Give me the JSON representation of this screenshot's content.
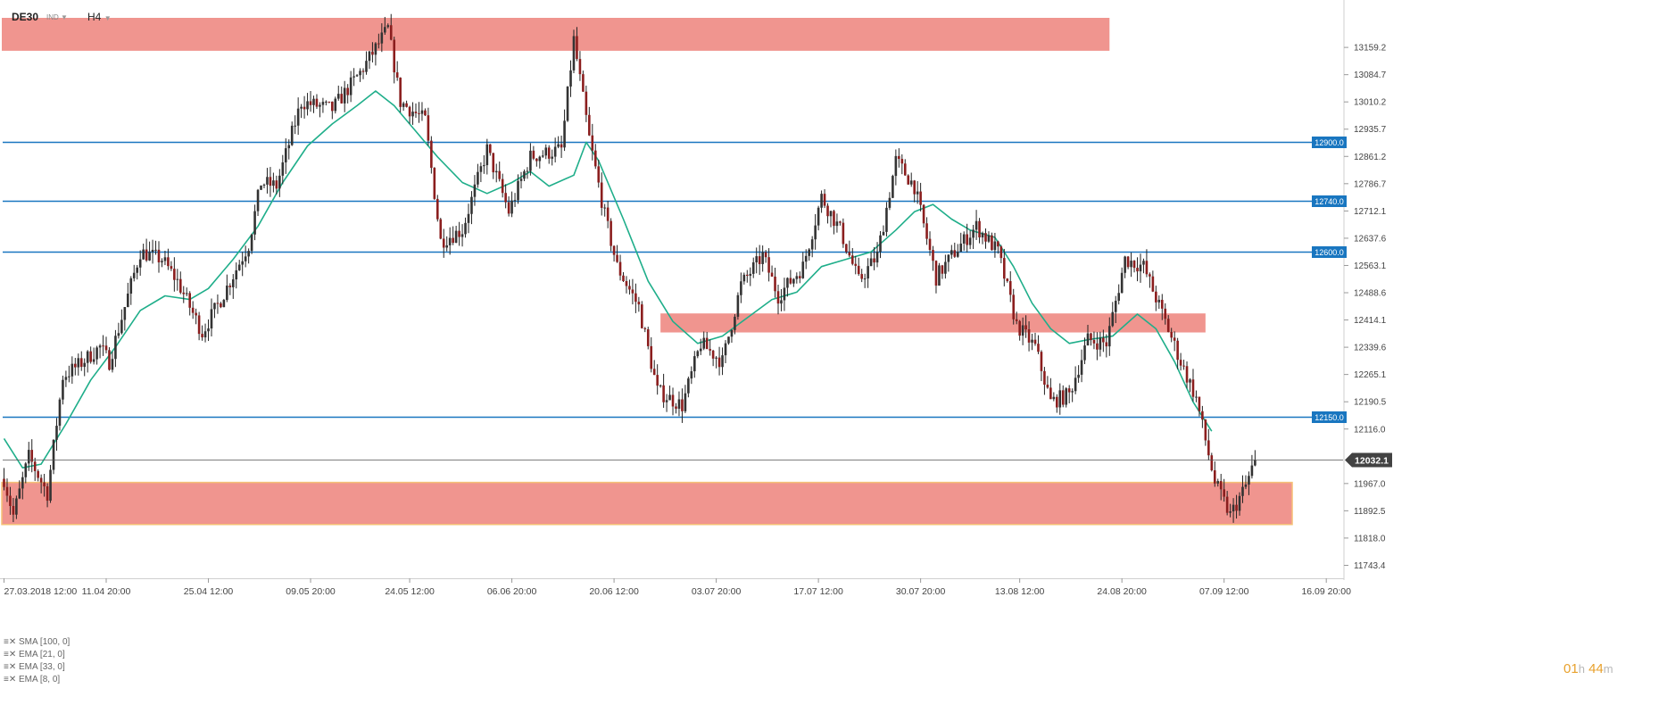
{
  "header": {
    "symbol": "DE30",
    "asset_class": "IND",
    "timeframe": "H4"
  },
  "indicators": [
    {
      "label": "SMA",
      "params": "[100,  0]"
    },
    {
      "label": "EMA",
      "params": "[21,  0]"
    },
    {
      "label": "EMA",
      "params": "[33,  0]"
    },
    {
      "label": "EMA",
      "params": "[8,  0]"
    }
  ],
  "countdown": {
    "hours": "01",
    "h_unit": "h",
    "minutes": "44",
    "m_unit": "m"
  },
  "colors": {
    "bull": "#333333",
    "bear": "#8b1e1e",
    "zone": "#f0958f",
    "level_line": "#1976c0",
    "level_label_bg": "#1976c0",
    "ma_line": "#1fae8a",
    "price_label_bg": "#424242",
    "support_border": "#f5c177"
  },
  "chart_data": {
    "type": "candlestick",
    "instrument": "DE30",
    "timeframe": "H4",
    "ylim": [
      11708,
      13240
    ],
    "y_ticks": [
      {
        "value": 13159.2,
        "label": "13159.2"
      },
      {
        "value": 13084.7,
        "label": "13084.7"
      },
      {
        "value": 13010.2,
        "label": "13010.2"
      },
      {
        "value": 12935.7,
        "label": "12935.7"
      },
      {
        "value": 12861.2,
        "label": "12861.2"
      },
      {
        "value": 12786.7,
        "label": "12786.7"
      },
      {
        "value": 12712.1,
        "label": "12712.1"
      },
      {
        "value": 12637.6,
        "label": "12637.6"
      },
      {
        "value": 12563.1,
        "label": "12563.1"
      },
      {
        "value": 12488.6,
        "label": "12488.6"
      },
      {
        "value": 12414.1,
        "label": "12414.1"
      },
      {
        "value": 12339.6,
        "label": "12339.6"
      },
      {
        "value": 12265.1,
        "label": "12265.1"
      },
      {
        "value": 12190.5,
        "label": "12190.5"
      },
      {
        "value": 12116.0,
        "label": "12116.0"
      },
      {
        "value": 11967.0,
        "label": "11967.0"
      },
      {
        "value": 11892.5,
        "label": "11892.5"
      },
      {
        "value": 11818.0,
        "label": "11818.0"
      },
      {
        "value": 11743.4,
        "label": "11743.4"
      }
    ],
    "x_ticks": [
      {
        "bar": 0,
        "label": "27.03.2018  12:00"
      },
      {
        "bar": 33,
        "label": "11.04  20:00"
      },
      {
        "bar": 66,
        "label": "25.04  12:00"
      },
      {
        "bar": 99,
        "label": "09.05  20:00"
      },
      {
        "bar": 131,
        "label": "24.05  12:00"
      },
      {
        "bar": 164,
        "label": "06.06  20:00"
      },
      {
        "bar": 197,
        "label": "20.06  12:00"
      },
      {
        "bar": 230,
        "label": "03.07  20:00"
      },
      {
        "bar": 263,
        "label": "17.07  12:00"
      },
      {
        "bar": 296,
        "label": "30.07  20:00"
      },
      {
        "bar": 328,
        "label": "13.08  12:00"
      },
      {
        "bar": 361,
        "label": "24.08  20:00"
      },
      {
        "bar": 394,
        "label": "07.09  12:00"
      },
      {
        "bar": 427,
        "label": "16.09  20:00"
      }
    ],
    "current_price": {
      "value": 12032.1,
      "label": "12032.1"
    },
    "levels": [
      {
        "value": 12900.0,
        "label": "12900.0"
      },
      {
        "value": 12740.0,
        "label": "12740.0"
      },
      {
        "value": 12600.0,
        "label": "12600.0"
      },
      {
        "value": 12150.0,
        "label": "12150.0"
      }
    ],
    "zones": [
      {
        "from_bar": 0,
        "to_bar": 357,
        "low": 13150,
        "high": 13240
      },
      {
        "from_bar": 212,
        "to_bar": 388,
        "low": 12380,
        "high": 12432
      },
      {
        "from_bar": 0,
        "to_bar": 416,
        "low": 11855,
        "high": 11970
      }
    ],
    "anchors": [
      [
        0,
        11980
      ],
      [
        3,
        11880
      ],
      [
        8,
        12040
      ],
      [
        14,
        11940
      ],
      [
        19,
        12260
      ],
      [
        24,
        12290
      ],
      [
        31,
        12340
      ],
      [
        34,
        12300
      ],
      [
        44,
        12600
      ],
      [
        51,
        12580
      ],
      [
        56,
        12520
      ],
      [
        64,
        12380
      ],
      [
        70,
        12470
      ],
      [
        79,
        12620
      ],
      [
        83,
        12790
      ],
      [
        88,
        12780
      ],
      [
        96,
        13010
      ],
      [
        106,
        12990
      ],
      [
        115,
        13090
      ],
      [
        124,
        13210
      ],
      [
        128,
        13010
      ],
      [
        136,
        12960
      ],
      [
        141,
        12630
      ],
      [
        148,
        12660
      ],
      [
        156,
        12880
      ],
      [
        163,
        12710
      ],
      [
        170,
        12860
      ],
      [
        180,
        12880
      ],
      [
        184,
        13180
      ],
      [
        189,
        12910
      ],
      [
        194,
        12700
      ],
      [
        198,
        12560
      ],
      [
        205,
        12450
      ],
      [
        211,
        12220
      ],
      [
        219,
        12180
      ],
      [
        225,
        12350
      ],
      [
        232,
        12300
      ],
      [
        238,
        12510
      ],
      [
        245,
        12590
      ],
      [
        250,
        12480
      ],
      [
        258,
        12560
      ],
      [
        264,
        12750
      ],
      [
        270,
        12660
      ],
      [
        276,
        12520
      ],
      [
        282,
        12590
      ],
      [
        288,
        12850
      ],
      [
        294,
        12780
      ],
      [
        301,
        12530
      ],
      [
        307,
        12600
      ],
      [
        314,
        12670
      ],
      [
        321,
        12600
      ],
      [
        327,
        12400
      ],
      [
        333,
        12340
      ],
      [
        338,
        12190
      ],
      [
        344,
        12210
      ],
      [
        350,
        12360
      ],
      [
        356,
        12350
      ],
      [
        362,
        12580
      ],
      [
        368,
        12560
      ],
      [
        375,
        12410
      ],
      [
        380,
        12300
      ],
      [
        385,
        12200
      ],
      [
        391,
        11970
      ],
      [
        396,
        11880
      ],
      [
        401,
        11960
      ],
      [
        404,
        12032
      ]
    ],
    "ma_points": [
      [
        0,
        12090
      ],
      [
        6,
        12010
      ],
      [
        12,
        12020
      ],
      [
        20,
        12130
      ],
      [
        28,
        12250
      ],
      [
        36,
        12340
      ],
      [
        44,
        12440
      ],
      [
        52,
        12480
      ],
      [
        60,
        12470
      ],
      [
        66,
        12500
      ],
      [
        74,
        12580
      ],
      [
        82,
        12670
      ],
      [
        90,
        12790
      ],
      [
        98,
        12890
      ],
      [
        106,
        12950
      ],
      [
        114,
        13000
      ],
      [
        120,
        13040
      ],
      [
        126,
        13000
      ],
      [
        132,
        12940
      ],
      [
        140,
        12860
      ],
      [
        148,
        12790
      ],
      [
        156,
        12760
      ],
      [
        164,
        12790
      ],
      [
        170,
        12820
      ],
      [
        176,
        12780
      ],
      [
        184,
        12810
      ],
      [
        188,
        12900
      ],
      [
        192,
        12850
      ],
      [
        200,
        12690
      ],
      [
        208,
        12520
      ],
      [
        216,
        12410
      ],
      [
        224,
        12350
      ],
      [
        232,
        12370
      ],
      [
        240,
        12420
      ],
      [
        248,
        12470
      ],
      [
        256,
        12490
      ],
      [
        264,
        12560
      ],
      [
        272,
        12580
      ],
      [
        280,
        12600
      ],
      [
        288,
        12660
      ],
      [
        294,
        12710
      ],
      [
        300,
        12730
      ],
      [
        306,
        12690
      ],
      [
        312,
        12660
      ],
      [
        320,
        12640
      ],
      [
        326,
        12560
      ],
      [
        332,
        12460
      ],
      [
        338,
        12390
      ],
      [
        344,
        12350
      ],
      [
        350,
        12360
      ],
      [
        358,
        12370
      ],
      [
        366,
        12430
      ],
      [
        372,
        12390
      ],
      [
        378,
        12300
      ],
      [
        384,
        12190
      ],
      [
        390,
        12110
      ]
    ]
  }
}
